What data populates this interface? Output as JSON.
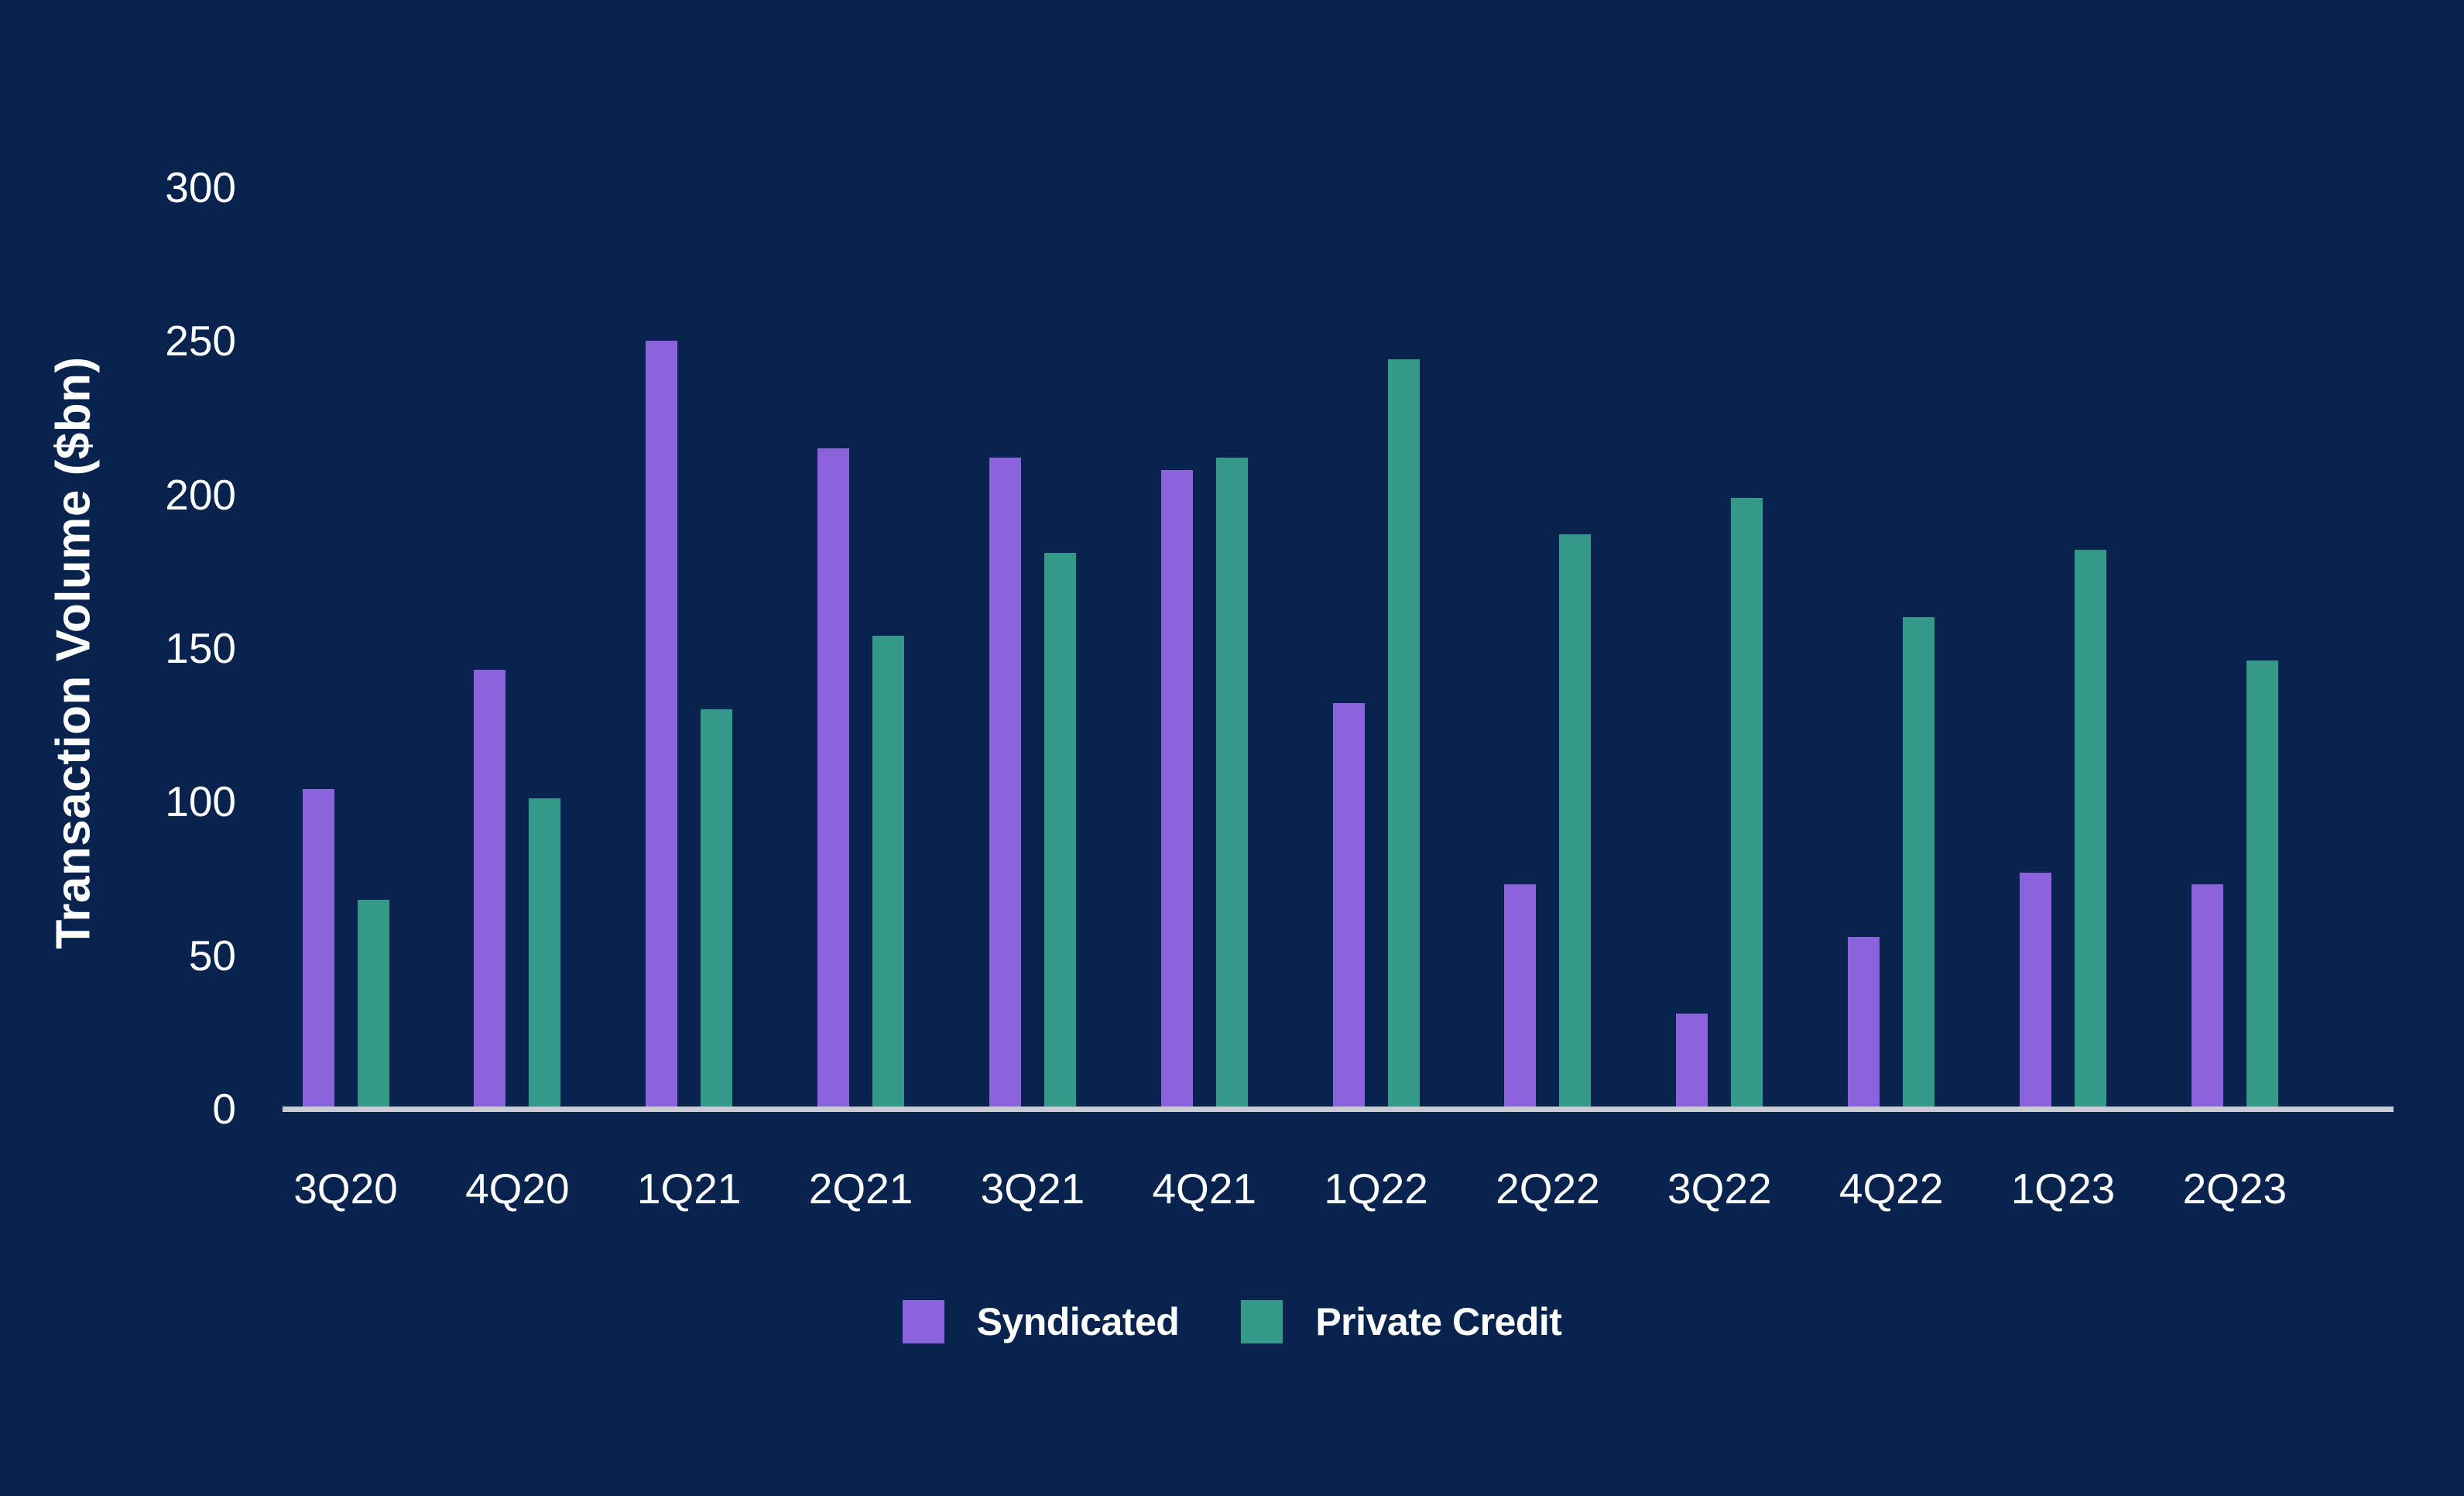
{
  "colors": {
    "background": "#07234e",
    "text": "#ffffff",
    "axis_line": "#c9ccd4",
    "syndicated": "#8b63dd",
    "private_credit": "#35998a"
  },
  "chart_data": {
    "type": "bar",
    "title": "",
    "xlabel": "",
    "ylabel": "Transaction Volume ($bn)",
    "ylim": [
      0,
      300
    ],
    "yticks": [
      0,
      50,
      100,
      150,
      200,
      250,
      300
    ],
    "grid": false,
    "legend_position": "bottom-center",
    "categories": [
      "3Q20",
      "4Q20",
      "1Q21",
      "2Q21",
      "3Q21",
      "4Q21",
      "1Q22",
      "2Q22",
      "3Q22",
      "4Q22",
      "1Q23",
      "2Q23"
    ],
    "series": [
      {
        "name": "Syndicated",
        "color": "#8b63dd",
        "values": [
          104,
          143,
          250,
          215,
          212,
          208,
          132,
          73,
          31,
          56,
          77,
          73
        ]
      },
      {
        "name": "Private Credit",
        "color": "#35998a",
        "values": [
          68,
          101,
          130,
          154,
          181,
          212,
          244,
          187,
          199,
          160,
          182,
          146
        ]
      }
    ]
  },
  "legend": {
    "items": [
      {
        "label": "Syndicated",
        "color": "#8b63dd"
      },
      {
        "label": "Private Credit",
        "color": "#35998a"
      }
    ]
  }
}
